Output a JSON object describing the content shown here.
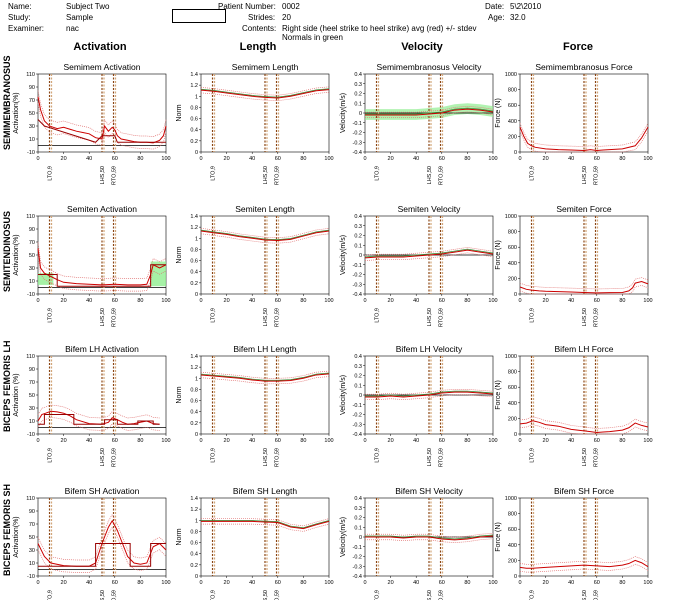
{
  "header": {
    "name_label": "Name:",
    "name_value": "Subject Two",
    "study_label": "Study:",
    "study_value": "Sample",
    "examiner_label": "Examiner:",
    "examiner_value": "nac",
    "patient_label": "Patient Number:",
    "patient_value": "0002",
    "strides_label": "Strides:",
    "strides_value": "20",
    "contents_label": "Contents:",
    "contents_value": "Right side (heel strike to heel strike) avg (red) +/- stdev",
    "contents_value2": "Normals in green",
    "date_label": "Date:",
    "date_value": "5\\2\\2010",
    "age_label": "Age:",
    "age_value": "32.0"
  },
  "columns": [
    "Activation",
    "Length",
    "Velocity",
    "Force"
  ],
  "rows": [
    "SEMIMEMBRANOSUS",
    "SEMITENDINOSUS",
    "BICEPS FEMORIS LH",
    "BICEPS FEMORIS SH"
  ],
  "event_labels": [
    "LTO,9",
    "LHS,50",
    "RTO,59"
  ],
  "colors": {
    "avg": "#cc0000",
    "stdev": "#e07070",
    "normal": "#90ee90",
    "event_a": "#8b4513",
    "event_b": "#d2a679",
    "onoff": "#990000"
  },
  "chart_data": [
    {
      "type": "line",
      "title": "Semimem Activation",
      "ylabel": "Activation(%)",
      "ylim": [
        -10,
        110
      ],
      "yticks": [
        -10,
        10,
        30,
        50,
        70,
        90,
        110
      ],
      "xlim": [
        0,
        100
      ],
      "xticks": [
        0,
        20,
        40,
        60,
        80,
        100
      ],
      "events": [
        9,
        50,
        59
      ],
      "x": [
        0,
        2,
        5,
        9,
        12,
        15,
        20,
        25,
        30,
        35,
        40,
        45,
        50,
        52,
        55,
        58,
        60,
        62,
        65,
        70,
        75,
        80,
        85,
        90,
        95,
        98,
        100
      ],
      "series": [
        {
          "values": [
            75,
            55,
            38,
            30,
            28,
            26,
            28,
            25,
            22,
            20,
            18,
            12,
            10,
            30,
            22,
            28,
            24,
            15,
            10,
            8,
            6,
            5,
            5,
            4,
            8,
            15,
            30
          ]
        }
      ],
      "onoff": [
        [
          0,
          40
        ],
        [
          5,
          30
        ],
        [
          45,
          5
        ],
        [
          50,
          15
        ],
        [
          60,
          15
        ],
        [
          62,
          5
        ],
        [
          100,
          5
        ]
      ]
    },
    {
      "type": "line",
      "title": "Semimem Length",
      "ylabel": "Norm",
      "ylim": [
        0,
        1.4
      ],
      "yticks": [
        0,
        0.2,
        0.4,
        0.6,
        0.8,
        1,
        1.2,
        1.4
      ],
      "xlim": [
        0,
        100
      ],
      "xticks": [
        0,
        20,
        40,
        60,
        80,
        100
      ],
      "events": [
        9,
        50,
        59
      ],
      "x": [
        0,
        10,
        20,
        30,
        40,
        50,
        60,
        70,
        80,
        90,
        100
      ],
      "series": [
        {
          "values": [
            1.11,
            1.09,
            1.06,
            1.03,
            1.0,
            0.98,
            0.97,
            1.0,
            1.05,
            1.1,
            1.12
          ]
        }
      ]
    },
    {
      "type": "line",
      "title": "Semimembranosus Velocity",
      "ylabel": "Velocity(m/s)",
      "ylim": [
        -0.4,
        0.4
      ],
      "yticks": [
        -0.4,
        -0.3,
        -0.2,
        -0.1,
        0,
        0.1,
        0.2,
        0.3,
        0.4
      ],
      "xlim": [
        0,
        100
      ],
      "xticks": [
        0,
        20,
        40,
        60,
        80,
        100
      ],
      "events": [
        9,
        50,
        59
      ],
      "x": [
        0,
        10,
        20,
        30,
        40,
        50,
        60,
        70,
        80,
        90,
        100
      ],
      "series": [
        {
          "values": [
            -0.02,
            -0.02,
            -0.02,
            -0.02,
            -0.02,
            -0.01,
            0.0,
            0.03,
            0.04,
            0.03,
            0.01
          ]
        }
      ]
    },
    {
      "type": "line",
      "title": "Semimembranosus Force",
      "ylabel": "Force (N)",
      "ylim": [
        0,
        1000
      ],
      "yticks": [
        0,
        200,
        400,
        600,
        800,
        1000
      ],
      "xlim": [
        0,
        100
      ],
      "xticks": [
        0,
        20,
        40,
        60,
        80,
        100
      ],
      "events": [
        9,
        50,
        59
      ],
      "x": [
        0,
        3,
        6,
        9,
        12,
        20,
        30,
        40,
        50,
        55,
        60,
        65,
        70,
        80,
        90,
        95,
        100
      ],
      "series": [
        {
          "values": [
            320,
            200,
            110,
            80,
            60,
            40,
            30,
            25,
            20,
            30,
            20,
            25,
            30,
            40,
            80,
            180,
            320
          ]
        }
      ]
    },
    {
      "type": "line",
      "title": "Semiten Activation",
      "ylabel": "Activation(%)",
      "ylim": [
        -10,
        110
      ],
      "yticks": [
        -10,
        10,
        30,
        50,
        70,
        90,
        110
      ],
      "xlim": [
        0,
        100
      ],
      "xticks": [
        0,
        20,
        40,
        60,
        80,
        100
      ],
      "events": [
        9,
        50,
        59
      ],
      "x": [
        0,
        2,
        5,
        9,
        12,
        15,
        20,
        30,
        40,
        50,
        60,
        70,
        80,
        85,
        88,
        90,
        95,
        100
      ],
      "series": [
        {
          "values": [
            60,
            30,
            22,
            18,
            15,
            12,
            8,
            6,
            5,
            4,
            5,
            4,
            4,
            5,
            20,
            35,
            30,
            35
          ]
        }
      ],
      "onoff": [
        [
          0,
          20
        ],
        [
          15,
          20
        ],
        [
          15,
          2
        ],
        [
          88,
          2
        ],
        [
          88,
          35
        ],
        [
          100,
          35
        ]
      ]
    },
    {
      "type": "line",
      "title": "Semiten Length",
      "ylabel": "Norm",
      "ylim": [
        0,
        1.4
      ],
      "yticks": [
        0,
        0.2,
        0.4,
        0.6,
        0.8,
        1,
        1.2,
        1.4
      ],
      "xlim": [
        0,
        100
      ],
      "xticks": [
        0,
        20,
        40,
        60,
        80,
        100
      ],
      "events": [
        9,
        50,
        59
      ],
      "x": [
        0,
        10,
        20,
        30,
        40,
        50,
        60,
        70,
        80,
        90,
        100
      ],
      "series": [
        {
          "values": [
            1.13,
            1.1,
            1.07,
            1.03,
            1.0,
            0.97,
            0.96,
            0.98,
            1.04,
            1.1,
            1.13
          ]
        }
      ]
    },
    {
      "type": "line",
      "title": "Semiten Velocity",
      "ylabel": "Velocity(m/s)",
      "ylim": [
        -0.4,
        0.4
      ],
      "yticks": [
        -0.4,
        -0.3,
        -0.2,
        -0.1,
        0,
        0.1,
        0.2,
        0.3,
        0.4
      ],
      "xlim": [
        0,
        100
      ],
      "xticks": [
        0,
        20,
        40,
        60,
        80,
        100
      ],
      "events": [
        9,
        50,
        59
      ],
      "x": [
        0,
        10,
        20,
        30,
        40,
        50,
        60,
        70,
        80,
        90,
        100
      ],
      "series": [
        {
          "values": [
            -0.03,
            -0.02,
            -0.02,
            -0.02,
            -0.01,
            0.0,
            0.01,
            0.03,
            0.05,
            0.03,
            0.01
          ]
        }
      ]
    },
    {
      "type": "line",
      "title": "Semiten Force",
      "ylabel": "Force (N)",
      "ylim": [
        0,
        1000
      ],
      "yticks": [
        0,
        200,
        400,
        600,
        800,
        1000
      ],
      "xlim": [
        0,
        100
      ],
      "xticks": [
        0,
        20,
        40,
        60,
        80,
        100
      ],
      "events": [
        9,
        50,
        59
      ],
      "x": [
        0,
        5,
        9,
        15,
        20,
        30,
        40,
        50,
        60,
        70,
        80,
        85,
        88,
        90,
        95,
        100
      ],
      "series": [
        {
          "values": [
            90,
            60,
            50,
            40,
            35,
            30,
            25,
            20,
            15,
            18,
            20,
            40,
            80,
            140,
            160,
            130
          ]
        }
      ]
    },
    {
      "type": "line",
      "title": "Bifem LH Activation",
      "ylabel": "Activation (%)",
      "ylim": [
        -10,
        110
      ],
      "yticks": [
        -10,
        10,
        30,
        50,
        70,
        90,
        110
      ],
      "xlim": [
        0,
        100
      ],
      "xticks": [
        0,
        20,
        40,
        60,
        80,
        100
      ],
      "events": [
        9,
        50,
        59
      ],
      "x": [
        0,
        3,
        6,
        10,
        15,
        20,
        25,
        30,
        40,
        50,
        55,
        58,
        62,
        66,
        70,
        75,
        80,
        85,
        90,
        95
      ],
      "series": [
        {
          "values": [
            10,
            20,
            22,
            25,
            24,
            22,
            18,
            12,
            6,
            5,
            8,
            15,
            12,
            8,
            5,
            6,
            8,
            10,
            6,
            5
          ]
        }
      ],
      "onoff": [
        [
          0,
          5
        ],
        [
          5,
          5
        ],
        [
          5,
          20
        ],
        [
          28,
          20
        ],
        [
          28,
          5
        ],
        [
          52,
          5
        ],
        [
          52,
          12
        ],
        [
          62,
          12
        ],
        [
          62,
          5
        ],
        [
          78,
          5
        ],
        [
          78,
          10
        ],
        [
          90,
          10
        ],
        [
          90,
          5
        ],
        [
          95,
          5
        ]
      ]
    },
    {
      "type": "line",
      "title": "Bifem LH Length",
      "ylabel": "Norm",
      "ylim": [
        0,
        1.4
      ],
      "yticks": [
        0,
        0.2,
        0.4,
        0.6,
        0.8,
        1,
        1.2,
        1.4
      ],
      "xlim": [
        0,
        100
      ],
      "xticks": [
        0,
        20,
        40,
        60,
        80,
        100
      ],
      "events": [
        9,
        50,
        59
      ],
      "x": [
        0,
        10,
        20,
        30,
        40,
        50,
        60,
        70,
        80,
        90,
        100
      ],
      "series": [
        {
          "values": [
            1.06,
            1.04,
            1.02,
            1.0,
            0.97,
            0.95,
            0.95,
            0.96,
            1.0,
            1.06,
            1.08
          ]
        }
      ]
    },
    {
      "type": "line",
      "title": "Bifem LH Velocity",
      "ylabel": "Velocity(m/s)",
      "ylim": [
        -0.4,
        0.4
      ],
      "yticks": [
        -0.4,
        -0.3,
        -0.2,
        -0.1,
        0,
        0.1,
        0.2,
        0.3,
        0.4
      ],
      "xlim": [
        0,
        100
      ],
      "xticks": [
        0,
        20,
        40,
        60,
        80,
        100
      ],
      "events": [
        9,
        50,
        59
      ],
      "x": [
        0,
        10,
        20,
        30,
        40,
        50,
        60,
        70,
        80,
        90,
        100
      ],
      "series": [
        {
          "values": [
            -0.02,
            -0.02,
            -0.01,
            -0.02,
            -0.01,
            0.0,
            0.02,
            0.03,
            0.03,
            0.02,
            0.01
          ]
        }
      ]
    },
    {
      "type": "line",
      "title": "Bifem LH Force",
      "ylabel": "Force (N)",
      "ylim": [
        0,
        1000
      ],
      "yticks": [
        0,
        200,
        400,
        600,
        800,
        1000
      ],
      "xlim": [
        0,
        100
      ],
      "xticks": [
        0,
        20,
        40,
        60,
        80,
        100
      ],
      "events": [
        9,
        50,
        59
      ],
      "x": [
        0,
        5,
        10,
        15,
        20,
        25,
        30,
        40,
        50,
        55,
        60,
        65,
        70,
        80,
        85,
        90,
        95,
        100
      ],
      "series": [
        {
          "values": [
            130,
            140,
            170,
            150,
            120,
            110,
            100,
            60,
            40,
            30,
            20,
            25,
            30,
            50,
            80,
            140,
            110,
            90
          ]
        }
      ]
    },
    {
      "type": "line",
      "title": "Bifem SH Activation",
      "ylabel": "Activation(%)",
      "ylim": [
        -10,
        110
      ],
      "yticks": [
        -10,
        10,
        30,
        50,
        70,
        90,
        110
      ],
      "xlim": [
        0,
        100
      ],
      "xticks": [
        0,
        20,
        40,
        60,
        80,
        100
      ],
      "events": [
        9,
        50,
        59
      ],
      "x": [
        0,
        5,
        10,
        20,
        30,
        40,
        45,
        50,
        55,
        58,
        62,
        66,
        70,
        75,
        80,
        85,
        90,
        95,
        100
      ],
      "series": [
        {
          "values": [
            40,
            20,
            10,
            6,
            5,
            5,
            10,
            40,
            65,
            75,
            60,
            40,
            20,
            10,
            8,
            10,
            35,
            40,
            30
          ]
        }
      ],
      "onoff": [
        [
          0,
          5
        ],
        [
          45,
          5
        ],
        [
          45,
          40
        ],
        [
          72,
          40
        ],
        [
          72,
          5
        ],
        [
          88,
          5
        ],
        [
          88,
          40
        ],
        [
          100,
          40
        ]
      ]
    },
    {
      "type": "line",
      "title": "Bifem SH Length",
      "ylabel": "Norm",
      "ylim": [
        0,
        1.4
      ],
      "yticks": [
        0,
        0.2,
        0.4,
        0.6,
        0.8,
        1,
        1.2,
        1.4
      ],
      "xlim": [
        0,
        100
      ],
      "xticks": [
        0,
        20,
        40,
        60,
        80,
        100
      ],
      "events": [
        9,
        50,
        59
      ],
      "x": [
        0,
        10,
        20,
        30,
        40,
        50,
        60,
        70,
        80,
        90,
        100
      ],
      "series": [
        {
          "values": [
            0.98,
            0.98,
            0.98,
            0.98,
            0.98,
            0.97,
            0.96,
            0.88,
            0.85,
            0.92,
            0.98
          ]
        }
      ]
    },
    {
      "type": "line",
      "title": "Bifem SH Velocity",
      "ylabel": "Velocity(m/s)",
      "ylim": [
        -0.4,
        0.4
      ],
      "yticks": [
        -0.4,
        -0.3,
        -0.2,
        -0.1,
        0,
        0.1,
        0.2,
        0.3,
        0.4
      ],
      "xlim": [
        0,
        100
      ],
      "xticks": [
        0,
        20,
        40,
        60,
        80,
        100
      ],
      "events": [
        9,
        50,
        59
      ],
      "x": [
        0,
        10,
        20,
        30,
        40,
        50,
        60,
        70,
        80,
        90,
        100
      ],
      "series": [
        {
          "values": [
            0.0,
            0.0,
            0.0,
            -0.01,
            0.0,
            0.0,
            -0.02,
            -0.03,
            -0.02,
            0.0,
            0.01
          ]
        }
      ]
    },
    {
      "type": "line",
      "title": "Bifem SH Force",
      "ylabel": "Force (N)",
      "ylim": [
        0,
        1000
      ],
      "yticks": [
        0,
        200,
        400,
        600,
        800,
        1000
      ],
      "xlim": [
        0,
        100
      ],
      "xticks": [
        0,
        20,
        40,
        60,
        80,
        100
      ],
      "events": [
        9,
        50,
        59
      ],
      "x": [
        0,
        5,
        10,
        20,
        30,
        40,
        50,
        60,
        70,
        80,
        85,
        90,
        95,
        100
      ],
      "series": [
        {
          "values": [
            110,
            100,
            100,
            110,
            120,
            130,
            140,
            130,
            120,
            140,
            160,
            200,
            170,
            120
          ]
        }
      ]
    }
  ]
}
